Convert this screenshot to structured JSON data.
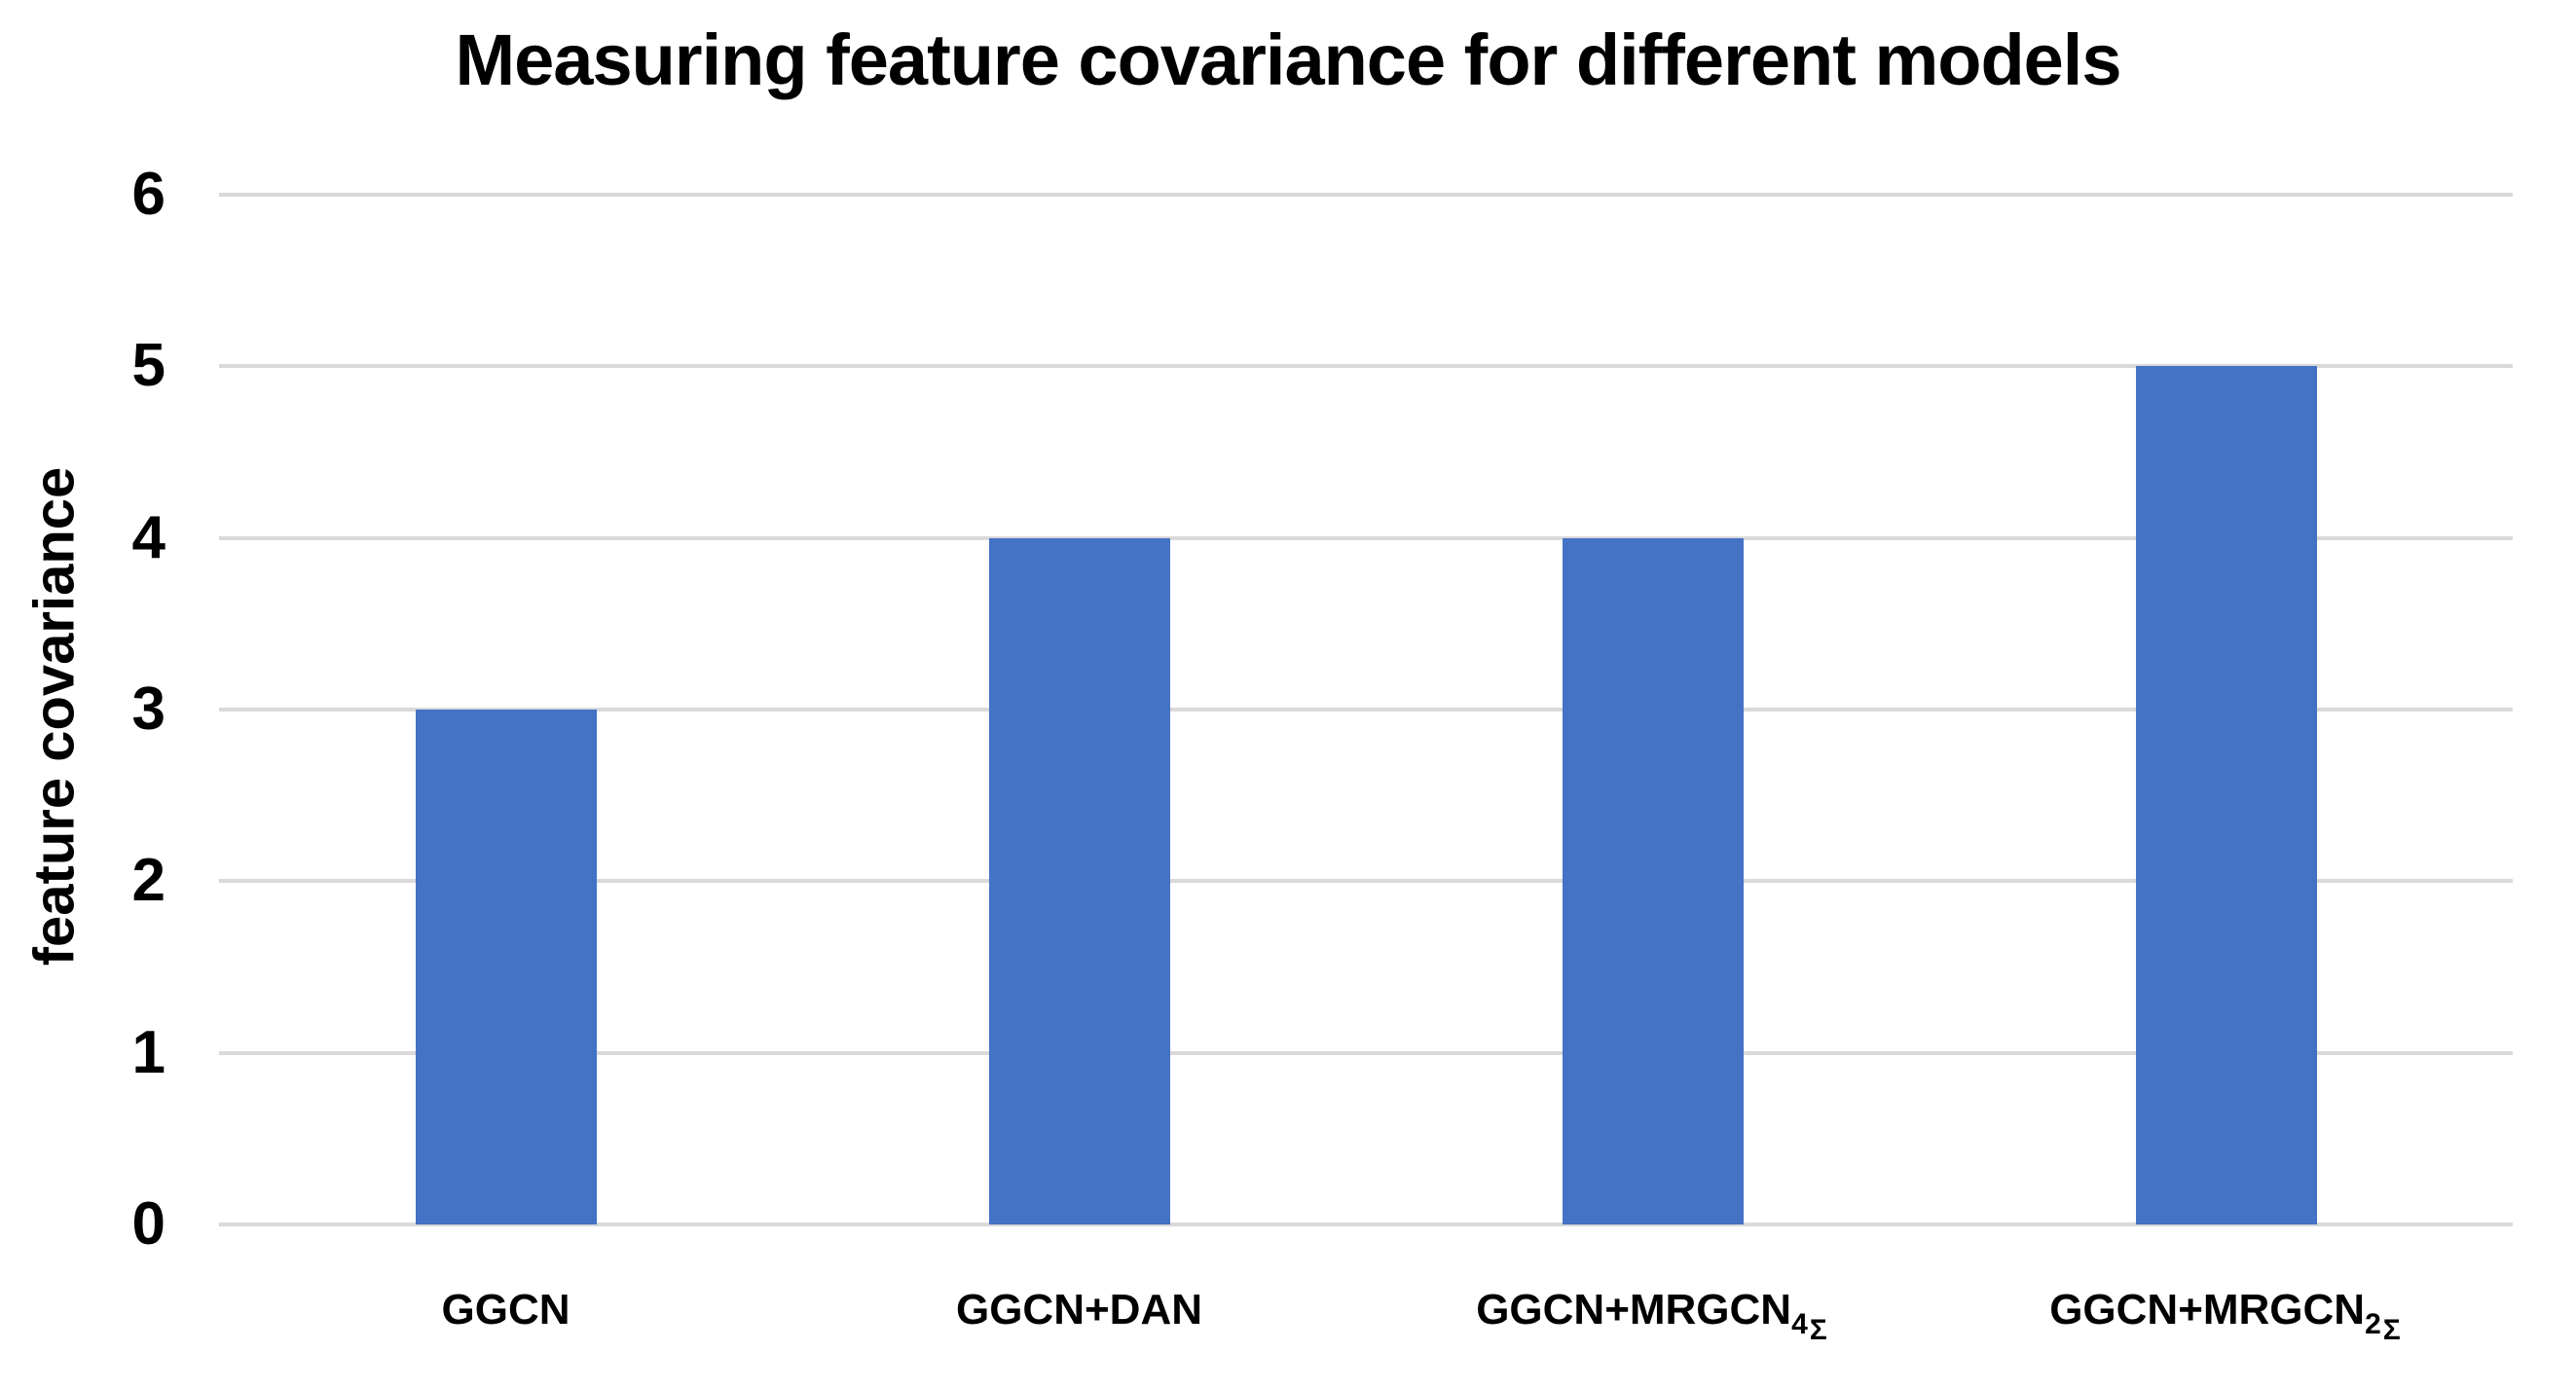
{
  "chart_data": {
    "type": "bar",
    "title": "Measuring feature covariance for different models",
    "xlabel": "",
    "ylabel": "feature covariance",
    "ylim": [
      0,
      6
    ],
    "yticks": [
      0,
      1,
      2,
      3,
      4,
      5,
      6
    ],
    "categories": [
      "GGCN",
      "GGCN+DAN",
      "GGCN+MRGCN4Σ",
      "GGCN+MRGCN2Σ"
    ],
    "categories_rich": [
      {
        "base": "GGCN",
        "sub": ""
      },
      {
        "base": "GGCN+DAN",
        "sub": ""
      },
      {
        "base": "GGCN+MRGCN",
        "sub": "4Σ"
      },
      {
        "base": "GGCN+MRGCN",
        "sub": "2Σ"
      }
    ],
    "values": [
      3,
      4,
      4,
      5
    ],
    "bar_color": "#4472C4",
    "gridline_color": "#D9D9D9",
    "text_color": "#000000",
    "background": "#FFFFFF",
    "grid": true,
    "legend": false
  }
}
